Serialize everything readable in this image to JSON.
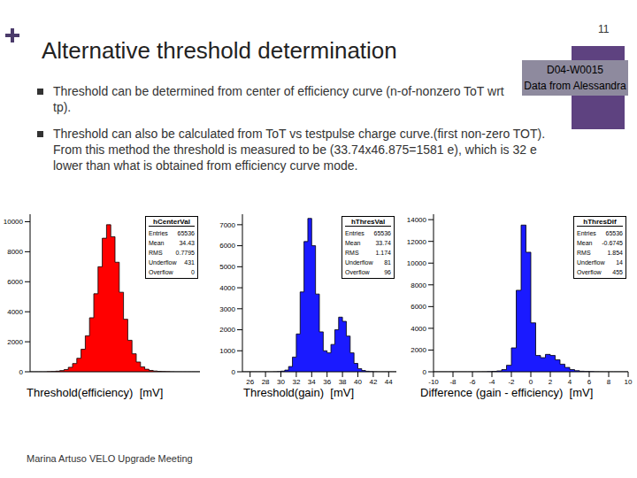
{
  "slide": {
    "title": "Alternative threshold determination",
    "page": "11",
    "tag": [
      "D04-W0015",
      "Data from Alessandra"
    ],
    "bullets": [
      "Threshold can be determined from center of efficiency curve (n-of-nonzero ToT wrt tp).",
      "Threshold can also be calculated from ToT vs testpulse charge curve.(first non-zero TOT).  From this method the threshold is measured to be (33.74x46.875=1581 e), which is 32 e lower than what is obtained from efficiency curve mode."
    ],
    "footer": "Marina Artuso VELO Upgrade Meeting"
  },
  "chart_data": [
    {
      "type": "histogram",
      "xlabel": "Threshold(efficiency)  [mV]",
      "color": "#ff0000",
      "grid": false,
      "tick_labels": "y",
      "xlim": [
        30,
        40
      ],
      "ylim": [
        0,
        10500
      ],
      "yticks": [
        0,
        2000,
        4000,
        6000,
        8000,
        10000
      ],
      "bins": [
        30,
        30.25,
        30.5,
        30.75,
        31,
        31.25,
        31.5,
        31.75,
        32,
        32.25,
        32.5,
        32.75,
        33,
        33.25,
        33.5,
        33.75,
        34,
        34.25,
        34.5,
        34.75,
        35,
        35.25,
        35.5,
        35.75,
        36,
        36.25,
        36.5,
        36.75,
        37,
        37.25,
        37.5,
        37.75,
        38,
        38.25,
        38.5,
        38.75,
        39,
        39.25,
        39.5,
        39.75,
        40
      ],
      "values": [
        0,
        0,
        0,
        0,
        10,
        20,
        40,
        80,
        150,
        300,
        550,
        900,
        1500,
        2400,
        3600,
        5200,
        7000,
        8900,
        9800,
        9000,
        7300,
        5300,
        3500,
        2100,
        1200,
        650,
        330,
        170,
        90,
        50,
        30,
        20,
        10,
        5,
        0,
        0,
        0,
        0,
        0,
        0
      ],
      "stats_title": "hCenterVal",
      "stats": [
        {
          "label": "Entries",
          "value": 65536
        },
        {
          "label": "Mean",
          "value": 34.43
        },
        {
          "label": "RMS",
          "value": 0.7795
        },
        {
          "label": "Underflow",
          "value": 431
        },
        {
          "label": "Overflow",
          "value": 0
        }
      ]
    },
    {
      "type": "histogram",
      "xlabel": "Threshold(gain)  [mV]",
      "color": "#1a1aff",
      "grid": false,
      "xlim": [
        25,
        45
      ],
      "xticks": [
        26,
        28,
        30,
        32,
        34,
        36,
        38,
        40,
        42,
        44
      ],
      "ylim": [
        0,
        7500
      ],
      "yticks": [
        0,
        1000,
        2000,
        3000,
        4000,
        5000,
        6000,
        7000
      ],
      "bins": [
        25,
        25.5,
        26,
        26.5,
        27,
        27.5,
        28,
        28.5,
        29,
        29.5,
        30,
        30.5,
        31,
        31.5,
        32,
        32.5,
        33,
        33.5,
        34,
        34.5,
        35,
        35.5,
        36,
        36.5,
        37,
        37.5,
        38,
        38.5,
        39,
        39.5,
        40,
        40.5,
        41,
        41.5,
        42,
        42.5,
        43,
        43.5,
        44,
        44.5,
        45
      ],
      "values": [
        0,
        0,
        0,
        0,
        0,
        0,
        0,
        0,
        5,
        10,
        30,
        80,
        250,
        700,
        1800,
        3800,
        6200,
        7300,
        6000,
        3700,
        1900,
        1000,
        900,
        1300,
        2000,
        2600,
        2400,
        1700,
        900,
        400,
        150,
        60,
        25,
        10,
        5,
        0,
        0,
        0,
        0,
        0
      ],
      "stats_title": "hThresVal",
      "stats": [
        {
          "label": "Entries",
          "value": 65536
        },
        {
          "label": "Mean",
          "value": 33.74
        },
        {
          "label": "RMS",
          "value": 1.174
        },
        {
          "label": "Underflow",
          "value": 81
        },
        {
          "label": "Overflow",
          "value": 96
        }
      ]
    },
    {
      "type": "histogram",
      "xlabel": "Difference (gain - efficiency)  [mV]",
      "color": "#1a1aff",
      "grid": false,
      "xlim": [
        -10,
        10
      ],
      "xticks": [
        -10,
        -8,
        -6,
        -4,
        -2,
        0,
        2,
        4,
        6,
        8,
        10
      ],
      "ylim": [
        0,
        14500
      ],
      "yticks": [
        0,
        2000,
        4000,
        6000,
        8000,
        10000,
        12000,
        14000
      ],
      "bins": [
        -10,
        -9.5,
        -9,
        -8.5,
        -8,
        -7.5,
        -7,
        -6.5,
        -6,
        -5.5,
        -5,
        -4.5,
        -4,
        -3.5,
        -3,
        -2.5,
        -2,
        -1.5,
        -1,
        -0.5,
        0,
        0.5,
        1,
        1.5,
        2,
        2.5,
        3,
        3.5,
        4,
        4.5,
        5,
        5.5,
        6,
        6.5,
        7,
        7.5,
        8,
        8.5,
        9,
        9.5,
        10
      ],
      "values": [
        0,
        0,
        0,
        0,
        0,
        0,
        0,
        0,
        0,
        5,
        10,
        20,
        40,
        80,
        200,
        600,
        2200,
        7500,
        13500,
        11000,
        4500,
        1500,
        1300,
        1600,
        1500,
        1100,
        700,
        400,
        200,
        100,
        50,
        30,
        20,
        10,
        5,
        0,
        0,
        0,
        0,
        0
      ],
      "stats_title": "hThresDif",
      "stats": [
        {
          "label": "Entries",
          "value": 65536
        },
        {
          "label": "Mean",
          "value": -0.6745
        },
        {
          "label": "RMS",
          "value": 1.854
        },
        {
          "label": "Underflow",
          "value": 14
        },
        {
          "label": "Overflow",
          "value": 455
        }
      ]
    }
  ]
}
